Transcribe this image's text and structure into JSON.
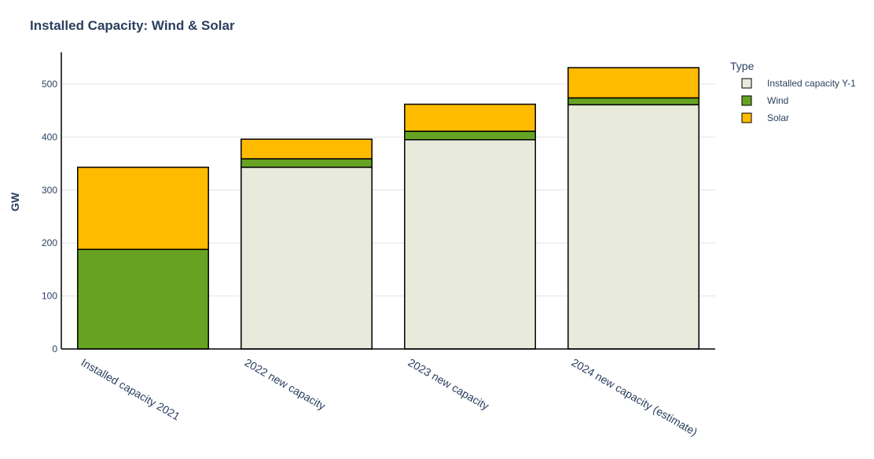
{
  "chart_data": {
    "type": "bar",
    "stacked": true,
    "title": "Installed Capacity: Wind & Solar",
    "xlabel": "",
    "ylabel": "GW",
    "ylim": [
      0,
      560
    ],
    "yticks": [
      0,
      100,
      200,
      300,
      400,
      500
    ],
    "grid": true,
    "categories": [
      "Installed capacity 2021",
      "2022 new capacity",
      "2023 new capacity",
      "2024 new capacity (estimate)"
    ],
    "legend": {
      "title": "Type",
      "placement": "top-right"
    },
    "series": [
      {
        "name": "Installed capacity Y-1",
        "color": "#e8eadc",
        "values": [
          0,
          343,
          395,
          461
        ]
      },
      {
        "name": "Wind",
        "color": "#66a322",
        "values": [
          188,
          16,
          16,
          13
        ]
      },
      {
        "name": "Solar",
        "color": "#ffbb00",
        "values": [
          155,
          37,
          51,
          57
        ]
      }
    ]
  }
}
